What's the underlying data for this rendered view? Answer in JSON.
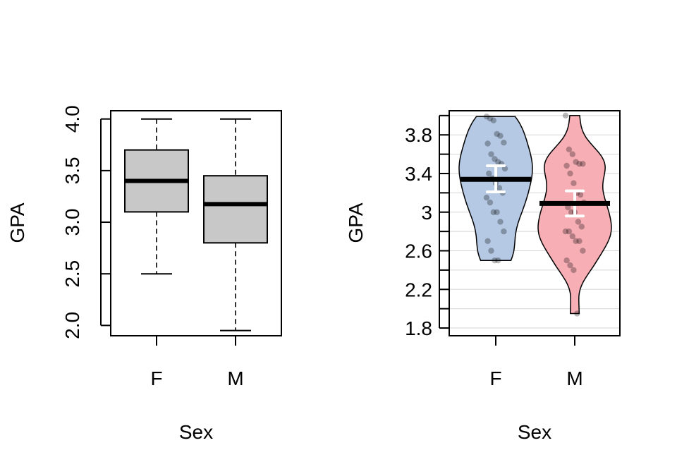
{
  "chart_data": [
    {
      "type": "box",
      "xlabel": "Sex",
      "ylabel": "GPA",
      "categories": [
        "F",
        "M"
      ],
      "ylim": [
        1.9,
        4.08
      ],
      "yticks": [
        2.0,
        2.5,
        3.0,
        3.5,
        4.0
      ],
      "ytick_labels": [
        "2.0",
        "2.5",
        "3.0",
        "3.5",
        "4.0"
      ],
      "grid": false,
      "box_color": "#c8c8c8",
      "boxes": [
        {
          "category": "F",
          "min": 2.5,
          "q1": 3.1,
          "median": 3.4,
          "q3": 3.7,
          "max": 4.0
        },
        {
          "category": "M",
          "min": 1.95,
          "q1": 2.8,
          "median": 3.175,
          "q3": 3.45,
          "max": 4.0
        }
      ]
    },
    {
      "type": "violin",
      "xlabel": "Sex",
      "ylabel": "GPA",
      "categories": [
        "F",
        "M"
      ],
      "ylim": [
        1.72,
        4.05
      ],
      "yticks": [
        1.8,
        2.2,
        2.6,
        3.0,
        3.4,
        3.8
      ],
      "ytick_labels": [
        "1.8",
        "2.2",
        "2.6",
        "3",
        "3.4",
        "3.8"
      ],
      "grid": true,
      "groups": [
        {
          "category": "F",
          "color": "#b5c8e4",
          "mean": 3.34,
          "ci": [
            3.21,
            3.48
          ],
          "points": [
            3.99,
            3.97,
            3.95,
            3.81,
            3.79,
            3.72,
            3.71,
            3.6,
            3.55,
            3.52,
            3.5,
            3.45,
            3.4,
            3.35,
            3.3,
            3.25,
            3.2,
            3.15,
            3.1,
            3.0,
            3.0,
            2.9,
            2.8,
            2.7,
            2.6,
            2.5,
            2.5
          ]
        },
        {
          "category": "M",
          "color": "#f7aeb4",
          "mean": 3.09,
          "ci": [
            2.96,
            3.22
          ],
          "points": [
            4.0,
            3.65,
            3.6,
            3.52,
            3.5,
            3.5,
            3.48,
            3.4,
            3.3,
            3.2,
            3.18,
            3.1,
            3.05,
            3.0,
            3.0,
            2.9,
            2.85,
            2.8,
            2.8,
            2.75,
            2.7,
            2.7,
            2.6,
            2.5,
            2.45,
            2.4,
            1.95
          ]
        }
      ]
    }
  ]
}
